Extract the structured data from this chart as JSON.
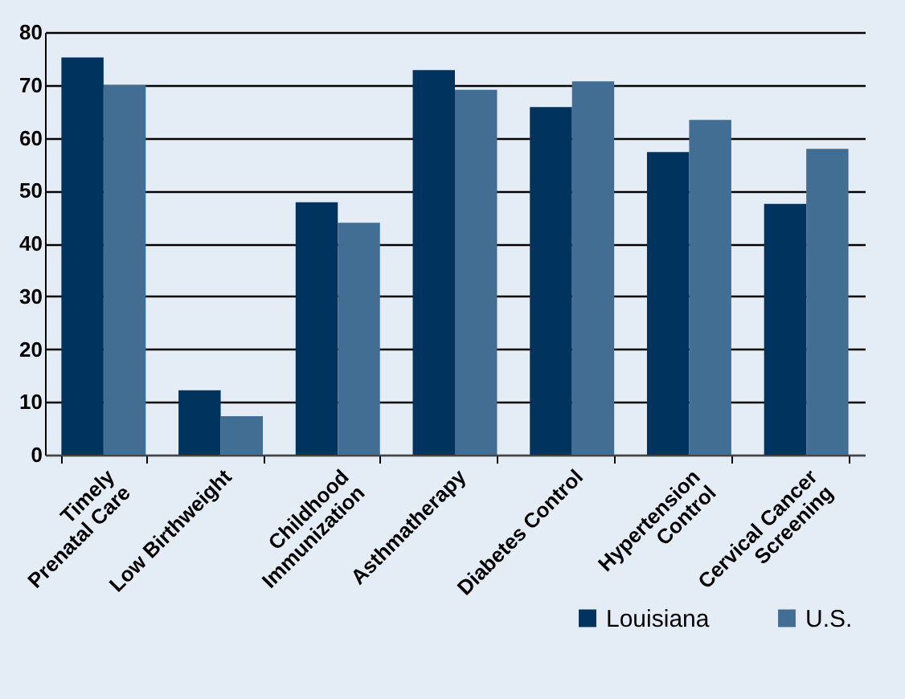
{
  "chart_data": {
    "type": "bar",
    "categories": [
      "Timely\nPrenatal Care",
      "Low Birthweight",
      "Childhood\nImmunization",
      "Asthmatherapy",
      "Diabetes Control",
      "Hypertension\nControl",
      "Cervical Cancer\nScreening"
    ],
    "series": [
      {
        "name": "Louisiana",
        "color": "#00335e",
        "values": [
          75.2,
          12.2,
          47.8,
          72.8,
          65.8,
          57.3,
          47.5
        ]
      },
      {
        "name": "U.S.",
        "color": "#426e94",
        "values": [
          70.0,
          7.3,
          43.9,
          69.1,
          70.7,
          63.4,
          57.9
        ]
      }
    ],
    "ylim": [
      0,
      80
    ],
    "yticks": [
      0,
      10,
      20,
      30,
      40,
      50,
      60,
      70,
      80
    ],
    "grid": "y",
    "legend": "bottom right"
  }
}
